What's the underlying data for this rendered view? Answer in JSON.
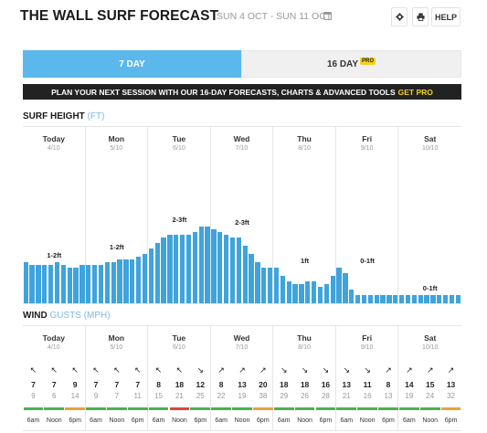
{
  "header": {
    "title": "THE WALL SURF FORECAST",
    "date_range": "SUN 4 OCT - SUN 11 OCT",
    "help_label": "HELP"
  },
  "tabs": [
    {
      "label": "7 DAY",
      "active": true
    },
    {
      "label": "16 DAY",
      "badge": "PRO",
      "active": false
    }
  ],
  "banner": {
    "text": "PLAN YOUR NEXT SESSION WITH OUR 16-DAY FORECASTS, CHARTS & ADVANCED TOOLS",
    "link": "GET PRO"
  },
  "surf": {
    "title": "SURF HEIGHT",
    "unit": "(FT)"
  },
  "wind": {
    "title": "WIND",
    "unit": "GUSTS (MPH)"
  },
  "days": [
    {
      "name": "Today",
      "date": "4/10"
    },
    {
      "name": "Mon",
      "date": "5/10"
    },
    {
      "name": "Tue",
      "date": "6/10"
    },
    {
      "name": "Wed",
      "date": "7/10"
    },
    {
      "name": "Thu",
      "date": "8/10"
    },
    {
      "name": "Fri",
      "date": "9/10"
    },
    {
      "name": "Sat",
      "date": "10/10"
    }
  ],
  "height_labels": [
    "1-2ft",
    "1-2ft",
    "2-3ft",
    "2-3ft",
    "1ft",
    "0-1ft",
    "0-1ft"
  ],
  "chart_data": {
    "type": "bar",
    "title": "SURF HEIGHT",
    "ylabel": "FT",
    "values": [
      1.5,
      1.4,
      1.4,
      1.4,
      1.4,
      1.5,
      1.4,
      1.3,
      1.3,
      1.4,
      1.4,
      1.4,
      1.4,
      1.5,
      1.5,
      1.6,
      1.6,
      1.6,
      1.7,
      1.8,
      2.0,
      2.2,
      2.4,
      2.5,
      2.5,
      2.5,
      2.5,
      2.6,
      2.8,
      2.8,
      2.7,
      2.6,
      2.5,
      2.4,
      2.4,
      2.1,
      1.8,
      1.5,
      1.3,
      1.3,
      1.3,
      1.0,
      0.8,
      0.7,
      0.7,
      0.8,
      0.8,
      0.6,
      0.7,
      1.0,
      1.3,
      1.1,
      0.5,
      0.3,
      0.3,
      0.3,
      0.3,
      0.3,
      0.3,
      0.3,
      0.3,
      0.3,
      0.3,
      0.3,
      0.3,
      0.3,
      0.3,
      0.3,
      0.3,
      0.3
    ],
    "ylim": [
      0,
      6.5
    ]
  },
  "wind_slots": [
    {
      "time": "6am",
      "speed": "7",
      "gust": "9",
      "arrow": "↖",
      "color": "#4caf50"
    },
    {
      "time": "Noon",
      "speed": "7",
      "gust": "6",
      "arrow": "↖",
      "color": "#4caf50"
    },
    {
      "time": "6pm",
      "speed": "9",
      "gust": "14",
      "arrow": "↖",
      "color": "#e8a33b"
    },
    {
      "time": "6am",
      "speed": "7",
      "gust": "9",
      "arrow": "↖",
      "color": "#4caf50"
    },
    {
      "time": "Noon",
      "speed": "7",
      "gust": "7",
      "arrow": "↖",
      "color": "#4caf50"
    },
    {
      "time": "6pm",
      "speed": "7",
      "gust": "11",
      "arrow": "↖",
      "color": "#4caf50"
    },
    {
      "time": "6am",
      "speed": "8",
      "gust": "15",
      "arrow": "↖",
      "color": "#4caf50"
    },
    {
      "time": "Noon",
      "speed": "18",
      "gust": "21",
      "arrow": "↖",
      "color": "#d9473c"
    },
    {
      "time": "6pm",
      "speed": "12",
      "gust": "25",
      "arrow": "↘",
      "color": "#4caf50"
    },
    {
      "time": "6am",
      "speed": "8",
      "gust": "22",
      "arrow": "↗",
      "color": "#4caf50"
    },
    {
      "time": "Noon",
      "speed": "13",
      "gust": "19",
      "arrow": "↗",
      "color": "#4caf50"
    },
    {
      "time": "6pm",
      "speed": "20",
      "gust": "38",
      "arrow": "↗",
      "color": "#e8a33b"
    },
    {
      "time": "6am",
      "speed": "18",
      "gust": "29",
      "arrow": "↘",
      "color": "#4caf50"
    },
    {
      "time": "Noon",
      "speed": "18",
      "gust": "26",
      "arrow": "↘",
      "color": "#4caf50"
    },
    {
      "time": "6pm",
      "speed": "16",
      "gust": "28",
      "arrow": "↘",
      "color": "#4caf50"
    },
    {
      "time": "6am",
      "speed": "13",
      "gust": "21",
      "arrow": "↘",
      "color": "#4caf50"
    },
    {
      "time": "Noon",
      "speed": "11",
      "gust": "16",
      "arrow": "↘",
      "color": "#4caf50"
    },
    {
      "time": "6pm",
      "speed": "8",
      "gust": "13",
      "arrow": "↗",
      "color": "#4caf50"
    },
    {
      "time": "6am",
      "speed": "14",
      "gust": "19",
      "arrow": "↗",
      "color": "#4caf50"
    },
    {
      "time": "Noon",
      "speed": "15",
      "gust": "24",
      "arrow": "↗",
      "color": "#4caf50"
    },
    {
      "time": "6pm",
      "speed": "13",
      "gust": "32",
      "arrow": "↗",
      "color": "#e8a33b"
    }
  ]
}
